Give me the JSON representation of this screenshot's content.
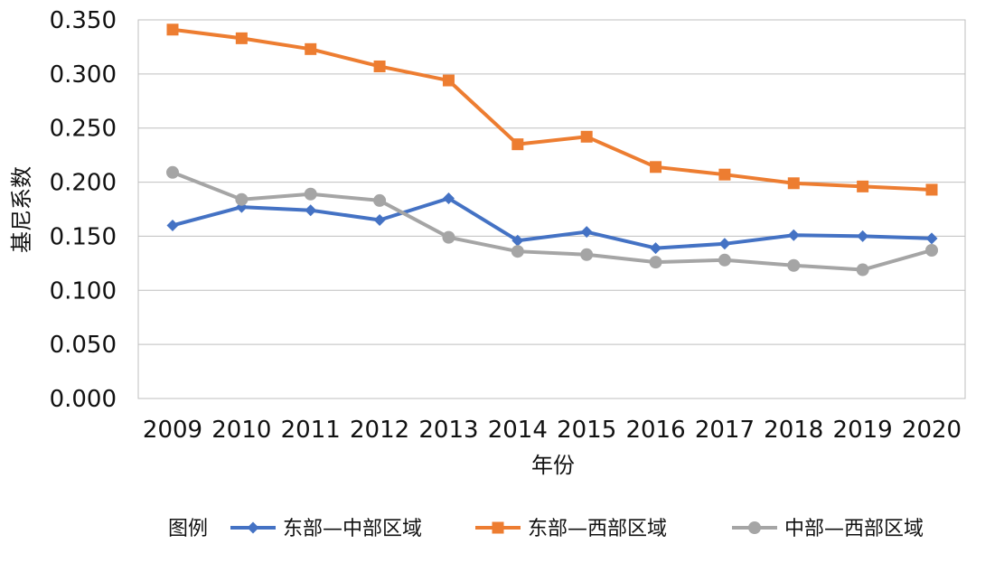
{
  "chart_data": {
    "type": "line",
    "title": "",
    "xlabel": "年份",
    "ylabel": "基尼系数",
    "ylim": [
      0,
      0.35
    ],
    "y_ticks": [
      "0.000",
      "0.050",
      "0.100",
      "0.150",
      "0.200",
      "0.250",
      "0.300",
      "0.350"
    ],
    "categories": [
      "2009",
      "2010",
      "2011",
      "2012",
      "2013",
      "2014",
      "2015",
      "2016",
      "2017",
      "2018",
      "2019",
      "2020"
    ],
    "grid": "horizontal",
    "legend": {
      "position": "bottom",
      "title": "图例"
    },
    "series": [
      {
        "name": "东部—中部区域",
        "color": "#4472C4",
        "marker": "diamond",
        "values": [
          0.16,
          0.177,
          0.174,
          0.165,
          0.185,
          0.146,
          0.154,
          0.139,
          0.143,
          0.151,
          0.15,
          0.148
        ]
      },
      {
        "name": "东部—西部区域",
        "color": "#ED7D31",
        "marker": "square",
        "values": [
          0.341,
          0.333,
          0.323,
          0.307,
          0.294,
          0.235,
          0.242,
          0.214,
          0.207,
          0.199,
          0.196,
          0.193
        ]
      },
      {
        "name": "中部—西部区域",
        "color": "#A5A5A5",
        "marker": "circle",
        "values": [
          0.209,
          0.184,
          0.189,
          0.183,
          0.149,
          0.136,
          0.133,
          0.126,
          0.128,
          0.123,
          0.119,
          0.137
        ]
      }
    ]
  }
}
